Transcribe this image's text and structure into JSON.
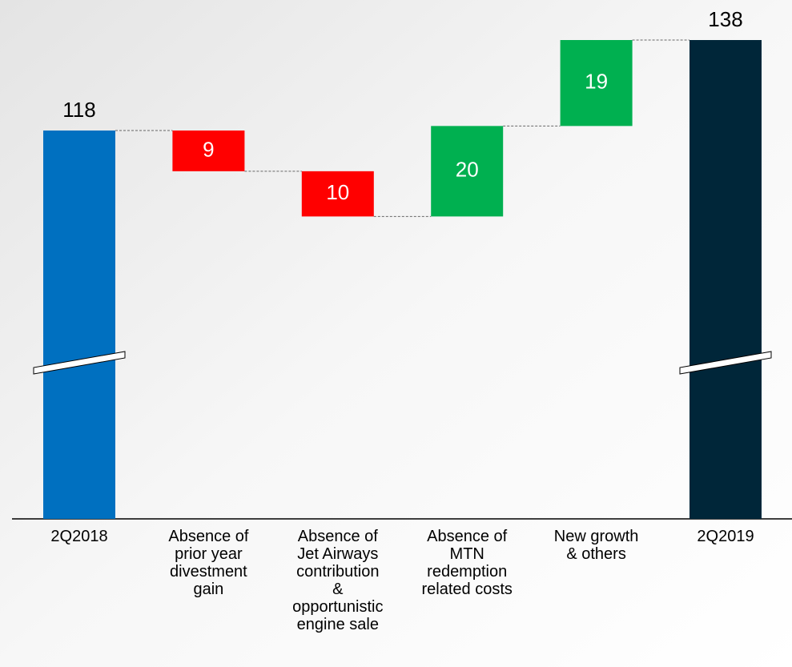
{
  "chart_data": {
    "type": "waterfall",
    "categories": [
      "2Q2018",
      "Absence of\nprior year\ndivestment\ngain",
      "Absence of\nJet Airways\ncontribution\n&\nopportunistic\nengine sale",
      "Absence of\nMTN\nredemption\nrelated costs",
      "New growth\n& others",
      "2Q2019"
    ],
    "values": [
      118,
      -9,
      -10,
      20,
      19,
      138
    ],
    "value_labels": [
      "118",
      "9",
      "10",
      "20",
      "19",
      "138"
    ],
    "colors": {
      "start": "#0070c0",
      "decrease": "#ff0000",
      "increase": "#00b050",
      "end": "#002639"
    }
  }
}
